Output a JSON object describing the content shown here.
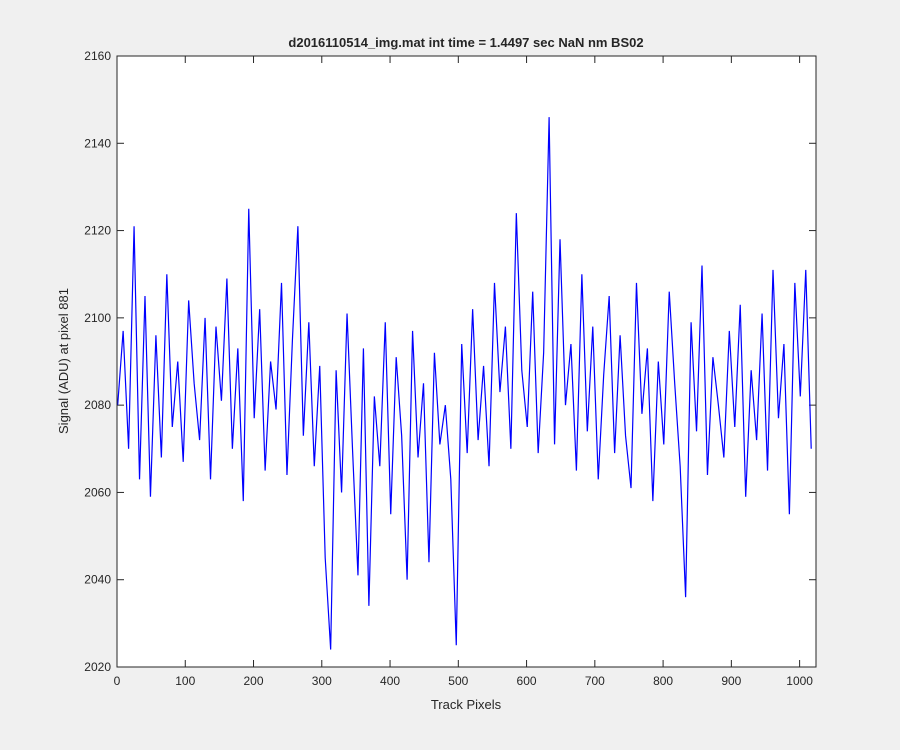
{
  "chart_data": {
    "type": "line",
    "title": "d2016110514_img.mat int time = 1.4497 sec  NaN nm BS02",
    "x_label": "Track Pixels",
    "y_label": "Signal (ADU) at pixel 881",
    "xlim": [
      0,
      1024
    ],
    "ylim": [
      2020,
      2160
    ],
    "xticks": [
      0,
      100,
      200,
      300,
      400,
      500,
      600,
      700,
      800,
      900,
      1000
    ],
    "yticks": [
      2020,
      2040,
      2060,
      2080,
      2100,
      2120,
      2140,
      2160
    ],
    "grid": false,
    "x": [
      1,
      9,
      17,
      25,
      33,
      41,
      49,
      57,
      65,
      73,
      81,
      89,
      97,
      105,
      113,
      121,
      129,
      137,
      145,
      153,
      161,
      169,
      177,
      185,
      193,
      201,
      209,
      217,
      225,
      233,
      241,
      249,
      257,
      265,
      273,
      281,
      289,
      297,
      305,
      313,
      321,
      329,
      337,
      345,
      353,
      361,
      369,
      377,
      385,
      393,
      401,
      409,
      417,
      425,
      433,
      441,
      449,
      457,
      465,
      473,
      481,
      489,
      497,
      505,
      513,
      521,
      529,
      537,
      545,
      553,
      561,
      569,
      577,
      585,
      593,
      601,
      609,
      617,
      625,
      633,
      641,
      649,
      657,
      665,
      673,
      681,
      689,
      697,
      705,
      713,
      721,
      729,
      737,
      745,
      753,
      761,
      769,
      777,
      785,
      793,
      801,
      809,
      817,
      825,
      833,
      841,
      849,
      857,
      865,
      873,
      881,
      889,
      897,
      905,
      913,
      921,
      929,
      937,
      945,
      953,
      961,
      969,
      977,
      985,
      993,
      1001,
      1009,
      1017
    ],
    "series": [
      {
        "name": "pixel 881",
        "color": "#0000ff",
        "values": [
          2080,
          2097,
          2070,
          2121,
          2063,
          2105,
          2059,
          2096,
          2068,
          2110,
          2075,
          2090,
          2067,
          2104,
          2085,
          2072,
          2100,
          2063,
          2098,
          2081,
          2109,
          2070,
          2093,
          2058,
          2125,
          2077,
          2102,
          2065,
          2090,
          2079,
          2108,
          2064,
          2095,
          2121,
          2073,
          2099,
          2066,
          2089,
          2045,
          2024,
          2088,
          2060,
          2101,
          2070,
          2041,
          2093,
          2034,
          2082,
          2066,
          2099,
          2055,
          2091,
          2073,
          2040,
          2097,
          2068,
          2085,
          2044,
          2092,
          2071,
          2080,
          2063,
          2025,
          2094,
          2069,
          2102,
          2072,
          2089,
          2066,
          2108,
          2083,
          2098,
          2070,
          2124,
          2088,
          2075,
          2106,
          2069,
          2092,
          2146,
          2071,
          2118,
          2080,
          2094,
          2065,
          2110,
          2074,
          2098,
          2063,
          2087,
          2105,
          2069,
          2096,
          2073,
          2061,
          2108,
          2078,
          2093,
          2058,
          2090,
          2071,
          2106,
          2085,
          2066,
          2036,
          2099,
          2074,
          2112,
          2064,
          2091,
          2080,
          2068,
          2097,
          2075,
          2103,
          2059,
          2088,
          2072,
          2101,
          2065,
          2111,
          2077,
          2094,
          2055,
          2108,
          2082,
          2111,
          2070
        ]
      }
    ]
  }
}
